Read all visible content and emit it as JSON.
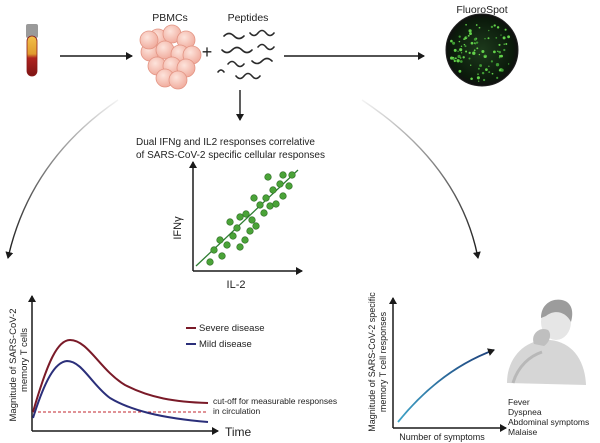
{
  "top": {
    "pbmc_label": "PBMCs",
    "plus_sign": "+",
    "peptides_label": "Peptides",
    "fluorospot_label": "FluoroSpot"
  },
  "center": {
    "caption_line1": "Dual IFNg and IL2 responses correlative",
    "caption_line2": "of SARS-CoV-2 specific cellular responses",
    "y_label": "IFNγ",
    "x_label": "IL-2",
    "point_color": "#4aa338",
    "line_color": "#2e7d32"
  },
  "left_chart": {
    "y_label_line1": "Magnitude of SARS-CoV-2",
    "y_label_line2": "memory T cells",
    "x_label": "Time",
    "legend_severe": "Severe disease",
    "legend_mild": "Mild disease",
    "severe_color": "#7a1a28",
    "mild_color": "#2b2f7a",
    "cutoff_color": "#c2262e",
    "cutoff_line1": "cut-off for measurable responses",
    "cutoff_line2": "in circulation"
  },
  "right_chart": {
    "y_label_line1": "Magnitude of SARS-CoV-2 specific",
    "y_label_line2": "memory T cell responses",
    "x_label": "Number of symptoms",
    "curve_start_color": "#3ea3c7",
    "curve_end_color": "#1d3f7a",
    "symptoms": [
      "Fever",
      "Dyspnea",
      "Abdominal symptoms",
      "Malaise"
    ]
  },
  "icons": {
    "blood_tube": "blood-tube-icon",
    "pbmc_cluster": "cell-cluster-icon",
    "peptides": "peptide-strands-icon",
    "fluorospot_well": "fluorospot-well-icon",
    "patient": "coughing-patient-icon"
  }
}
